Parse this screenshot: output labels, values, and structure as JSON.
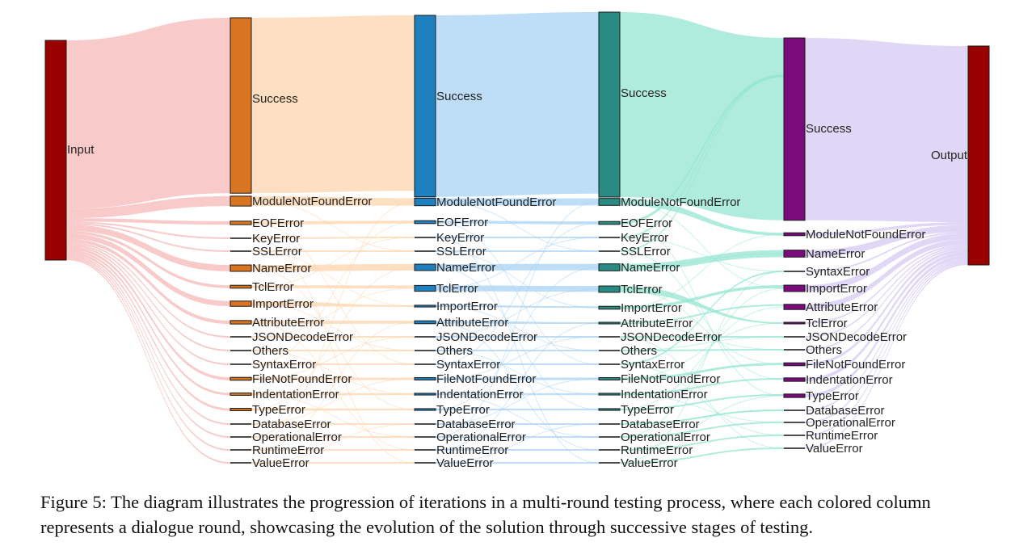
{
  "figure": {
    "caption": "Figure 5: The diagram illustrates the progression of iterations in a multi-round testing process, where each colored column represents a dialogue round, showcasing the evolution of the solution through successive stages of testing."
  },
  "colors": {
    "input_node": "#9b0000",
    "output_node": "#9b0000",
    "round1_node": "#d97420",
    "round2_node": "#1f80c0",
    "round3_node": "#2a8a84",
    "round4_node": "#7b0a7d",
    "flow_input": "#f6b8b8",
    "flow_r1": "#fdd4ac",
    "flow_r2": "#a8d2f4",
    "flow_r3": "#95e6d2",
    "flow_r4": "#d8cdf4"
  },
  "sankey": {
    "input_label": "Input",
    "output_label": "Output",
    "round1": [
      {
        "label": "Success",
        "value": 203
      },
      {
        "label": "ModuleNotFoundError",
        "value": 17
      },
      {
        "label": "EOFError",
        "value": 6
      },
      {
        "label": "KeyError",
        "value": 1
      },
      {
        "label": "SSLError",
        "value": 1
      },
      {
        "label": "NameError",
        "value": 11
      },
      {
        "label": "TclError",
        "value": 5
      },
      {
        "label": "ImportError",
        "value": 9
      },
      {
        "label": "AttributeError",
        "value": 6
      },
      {
        "label": "JSONDecodeError",
        "value": 1
      },
      {
        "label": "Others",
        "value": 1
      },
      {
        "label": "SyntaxError",
        "value": 1
      },
      {
        "label": "FileNotFoundError",
        "value": 5
      },
      {
        "label": "IndentationError",
        "value": 4
      },
      {
        "label": "TypeError",
        "value": 4
      },
      {
        "label": "DatabaseError",
        "value": 1
      },
      {
        "label": "OperationalError",
        "value": 1
      },
      {
        "label": "RuntimeError",
        "value": 1
      },
      {
        "label": "ValueError",
        "value": 1
      }
    ],
    "round2": [
      {
        "label": "Success",
        "value": 210
      },
      {
        "label": "ModuleNotFoundError",
        "value": 13
      },
      {
        "label": "EOFError",
        "value": 5
      },
      {
        "label": "KeyError",
        "value": 1
      },
      {
        "label": "SSLError",
        "value": 1
      },
      {
        "label": "NameError",
        "value": 11
      },
      {
        "label": "TclError",
        "value": 10
      },
      {
        "label": "ImportError",
        "value": 3
      },
      {
        "label": "AttributeError",
        "value": 5
      },
      {
        "label": "JSONDecodeError",
        "value": 1
      },
      {
        "label": "Others",
        "value": 1
      },
      {
        "label": "SyntaxError",
        "value": 1
      },
      {
        "label": "FileNotFoundError",
        "value": 4
      },
      {
        "label": "IndentationError",
        "value": 3
      },
      {
        "label": "TypeError",
        "value": 3
      },
      {
        "label": "DatabaseError",
        "value": 1
      },
      {
        "label": "OperationalError",
        "value": 1
      },
      {
        "label": "RuntimeError",
        "value": 1
      },
      {
        "label": "ValueError",
        "value": 1
      }
    ],
    "round3": [
      {
        "label": "Success",
        "value": 214
      },
      {
        "label": "ModuleNotFoundError",
        "value": 12
      },
      {
        "label": "EOFError",
        "value": 5
      },
      {
        "label": "KeyError",
        "value": 1
      },
      {
        "label": "SSLError",
        "value": 1
      },
      {
        "label": "NameError",
        "value": 12
      },
      {
        "label": "TclError",
        "value": 11
      },
      {
        "label": "ImportError",
        "value": 5
      },
      {
        "label": "AttributeError",
        "value": 2
      },
      {
        "label": "JSONDecodeError",
        "value": 1
      },
      {
        "label": "Others",
        "value": 1
      },
      {
        "label": "SyntaxError",
        "value": 1
      },
      {
        "label": "FileNotFoundError",
        "value": 4
      },
      {
        "label": "IndentationError",
        "value": 3
      },
      {
        "label": "TypeError",
        "value": 3
      },
      {
        "label": "DatabaseError",
        "value": 1
      },
      {
        "label": "OperationalError",
        "value": 1
      },
      {
        "label": "RuntimeError",
        "value": 1
      },
      {
        "label": "ValueError",
        "value": 1
      }
    ],
    "round4": [
      {
        "label": "Success",
        "value": 211
      },
      {
        "label": "ModuleNotFoundError",
        "value": 5
      },
      {
        "label": "NameError",
        "value": 12
      },
      {
        "label": "SyntaxError",
        "value": 1
      },
      {
        "label": "ImportError",
        "value": 11
      },
      {
        "label": "AttributeError",
        "value": 9
      },
      {
        "label": "TclError",
        "value": 2
      },
      {
        "label": "JSONDecodeError",
        "value": 1
      },
      {
        "label": "Others",
        "value": 1
      },
      {
        "label": "FileNotFoundError",
        "value": 5
      },
      {
        "label": "IndentationError",
        "value": 6
      },
      {
        "label": "TypeError",
        "value": 6
      },
      {
        "label": "DatabaseError",
        "value": 1
      },
      {
        "label": "OperationalError",
        "value": 1
      },
      {
        "label": "RuntimeError",
        "value": 1
      },
      {
        "label": "ValueError",
        "value": 1
      }
    ]
  }
}
